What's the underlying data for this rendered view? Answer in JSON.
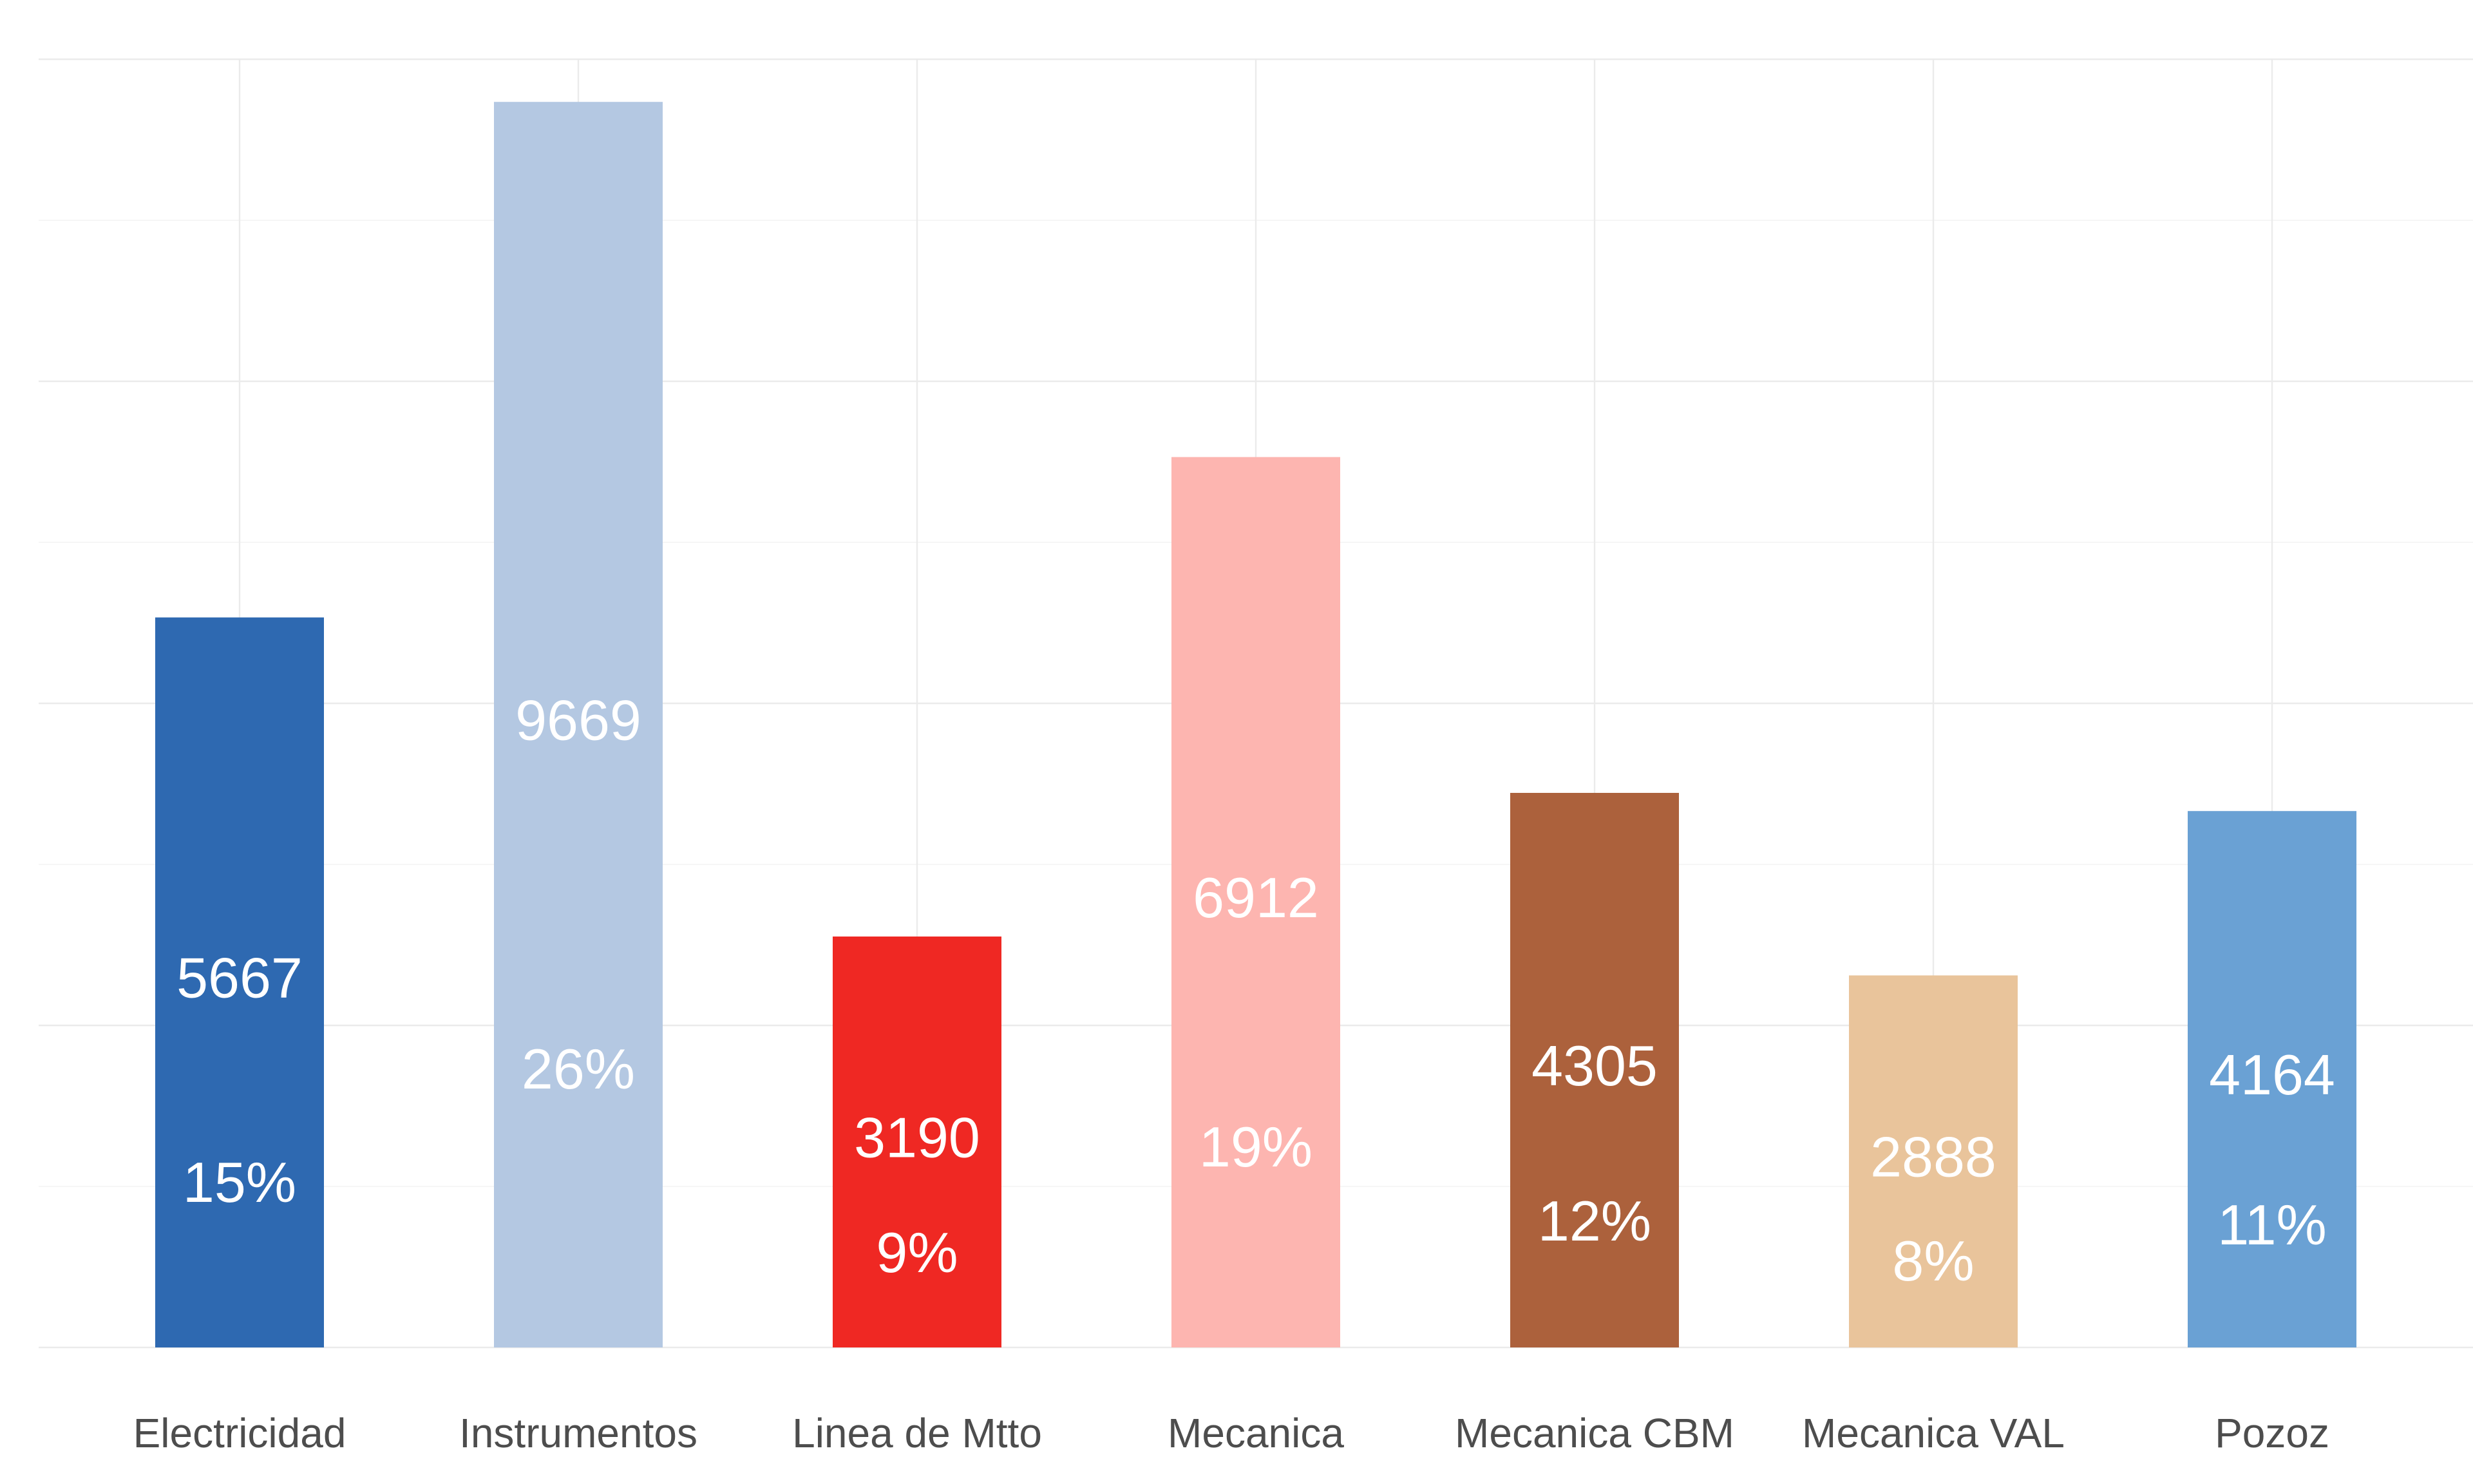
{
  "chart_data": {
    "type": "bar",
    "title": "",
    "xlabel": "",
    "ylabel": "",
    "categories": [
      "Electricidad",
      "Instrumentos",
      "Linea de Mtto",
      "Mecanica",
      "Mecanica CBM",
      "Mecanica VAL",
      "Pozoz"
    ],
    "values": [
      5667,
      9669,
      3190,
      6912,
      4305,
      2888,
      4164
    ],
    "value_labels": [
      "5667",
      "9669",
      "3190",
      "6912",
      "4305",
      "2888",
      "4164"
    ],
    "percent_labels": [
      "15%",
      "26%",
      "9%",
      "19%",
      "12%",
      "8%",
      "11%"
    ],
    "colors": [
      "#2e69b1",
      "#b4c8e2",
      "#ef2823",
      "#fdb5b0",
      "#ac613c",
      "#e9c49b",
      "#6aa1d4"
    ],
    "ylim": [
      0,
      10000
    ],
    "y_axis_labels_shown": false,
    "grid": true,
    "legend": "none"
  }
}
